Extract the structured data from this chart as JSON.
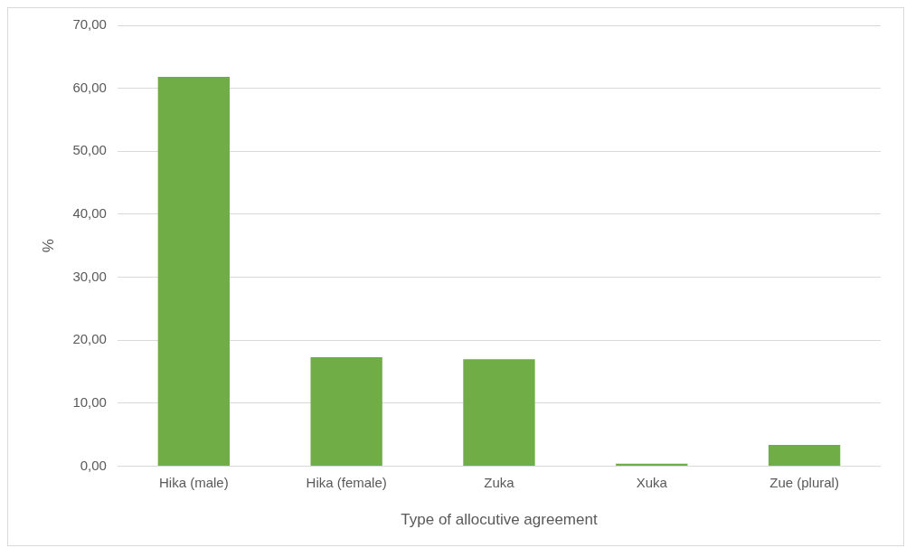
{
  "chart_data": {
    "type": "bar",
    "xlabel": "Type of allocutive agreement",
    "ylabel": "%",
    "categories": [
      "Hika (male)",
      "Hika (female)",
      "Zuka",
      "Xuka",
      "Zue (plural)"
    ],
    "values": [
      61.8,
      17.3,
      17.0,
      0.4,
      3.4
    ],
    "color": "#70ad47",
    "ylim": [
      0,
      70
    ],
    "yticks": [
      {
        "value": 0,
        "label": "0,00"
      },
      {
        "value": 10,
        "label": "10,00"
      },
      {
        "value": 20,
        "label": "20,00"
      },
      {
        "value": 30,
        "label": "30,00"
      },
      {
        "value": 40,
        "label": "40,00"
      },
      {
        "value": 50,
        "label": "50,00"
      },
      {
        "value": 60,
        "label": "60,00"
      },
      {
        "value": 70,
        "label": "70,00"
      }
    ],
    "grid": "y",
    "legend": false
  }
}
